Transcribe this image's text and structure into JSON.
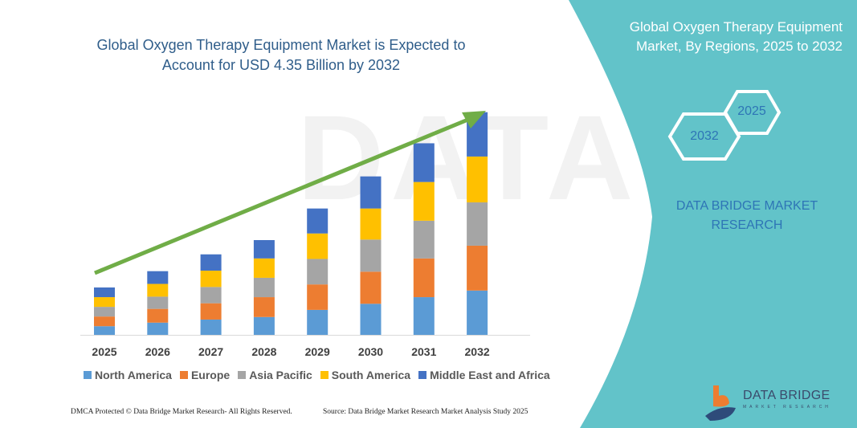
{
  "chart_data": {
    "type": "bar",
    "stacked": true,
    "title": "Global Oxygen Therapy Equipment Market is Expected to Account for USD 4.35 Billion by 2032",
    "xlabel": "",
    "ylabel": "",
    "ylim": [
      0,
      4.35
    ],
    "grid": false,
    "legend": "bottom",
    "categories": [
      "2025",
      "2026",
      "2027",
      "2028",
      "2029",
      "2030",
      "2031",
      "2032"
    ],
    "series": [
      {
        "name": "North America",
        "color": "#5b9bd5",
        "values": [
          0.17,
          0.24,
          0.3,
          0.35,
          0.49,
          0.61,
          0.74,
          0.87
        ]
      },
      {
        "name": "Europe",
        "color": "#ed7d31",
        "values": [
          0.19,
          0.27,
          0.32,
          0.39,
          0.5,
          0.63,
          0.76,
          0.88
        ]
      },
      {
        "name": "Asia Pacific",
        "color": "#a5a5a5",
        "values": [
          0.19,
          0.24,
          0.32,
          0.38,
          0.5,
          0.63,
          0.74,
          0.85
        ]
      },
      {
        "name": "South America",
        "color": "#ffc000",
        "values": [
          0.19,
          0.25,
          0.32,
          0.38,
          0.5,
          0.61,
          0.76,
          0.9
        ]
      },
      {
        "name": "Middle East and Africa",
        "color": "#4472c4",
        "values": [
          0.19,
          0.25,
          0.32,
          0.36,
          0.49,
          0.63,
          0.76,
          0.87
        ]
      }
    ],
    "trend_arrow_color": "#70ad47"
  },
  "side_panel": {
    "title": "Global Oxygen Therapy Equipment Market, By Regions, 2025 to 2032",
    "hex_labels": [
      "2025",
      "2032"
    ],
    "company": "DATA BRIDGE MARKET RESEARCH",
    "background": "#62c3c9"
  },
  "logo": {
    "name": "DATA BRIDGE",
    "tagline": "MARKET RESEARCH"
  },
  "footer": {
    "left": "DMCA Protected © Data Bridge Market Research-  All Rights Reserved.",
    "right": "Source: Data Bridge Market Research  Market Analysis Study 2025"
  }
}
